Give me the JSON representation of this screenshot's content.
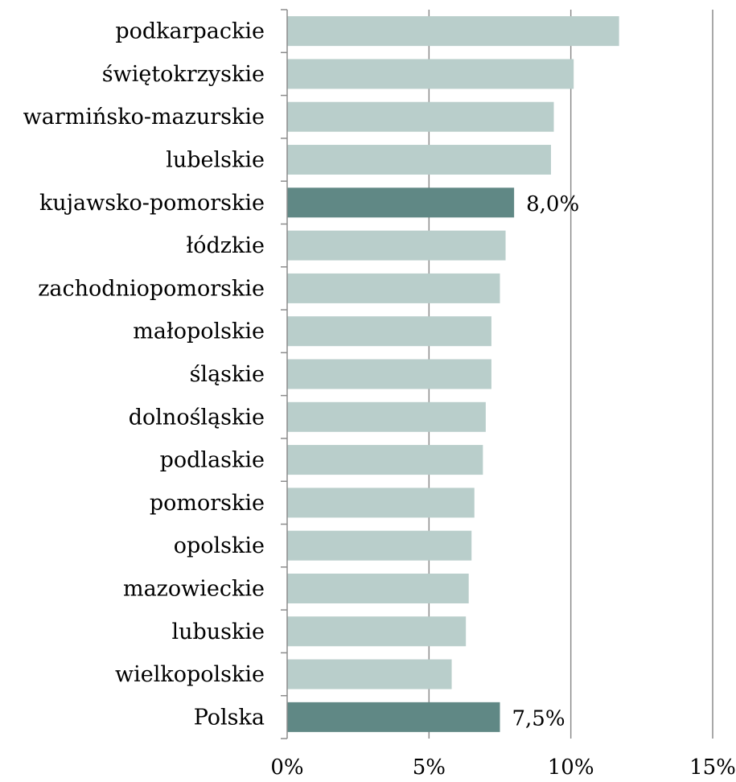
{
  "chart_data": {
    "type": "bar",
    "orientation": "horizontal",
    "categories": [
      "podkarpackie",
      "świętokrzyskie",
      "warmińsko-mazurskie",
      "lubelskie",
      "kujawsko-pomorskie",
      "łódzkie",
      "zachodniopomorskie",
      "małopolskie",
      "śląskie",
      "dolnośląskie",
      "podlaskie",
      "pomorskie",
      "opolskie",
      "mazowieckie",
      "lubuskie",
      "wielkopolskie",
      "Polska"
    ],
    "values": [
      11.7,
      10.1,
      9.4,
      9.3,
      8.0,
      7.7,
      7.5,
      7.2,
      7.2,
      7.0,
      6.9,
      6.6,
      6.5,
      6.4,
      6.3,
      5.8,
      7.5
    ],
    "highlighted": [
      "kujawsko-pomorskie",
      "Polska"
    ],
    "data_labels": {
      "kujawsko-pomorskie": "8,0%",
      "Polska": "7,5%"
    },
    "xlim": [
      0,
      15
    ],
    "x_ticks": [
      0,
      5,
      10,
      15
    ],
    "x_tick_labels": [
      "0%",
      "5%",
      "10%",
      "15%"
    ],
    "vertical_gridlines": true,
    "colors": {
      "bar": "#b9cecb",
      "highlight": "#608885",
      "grid": "#8c8c8c"
    }
  }
}
